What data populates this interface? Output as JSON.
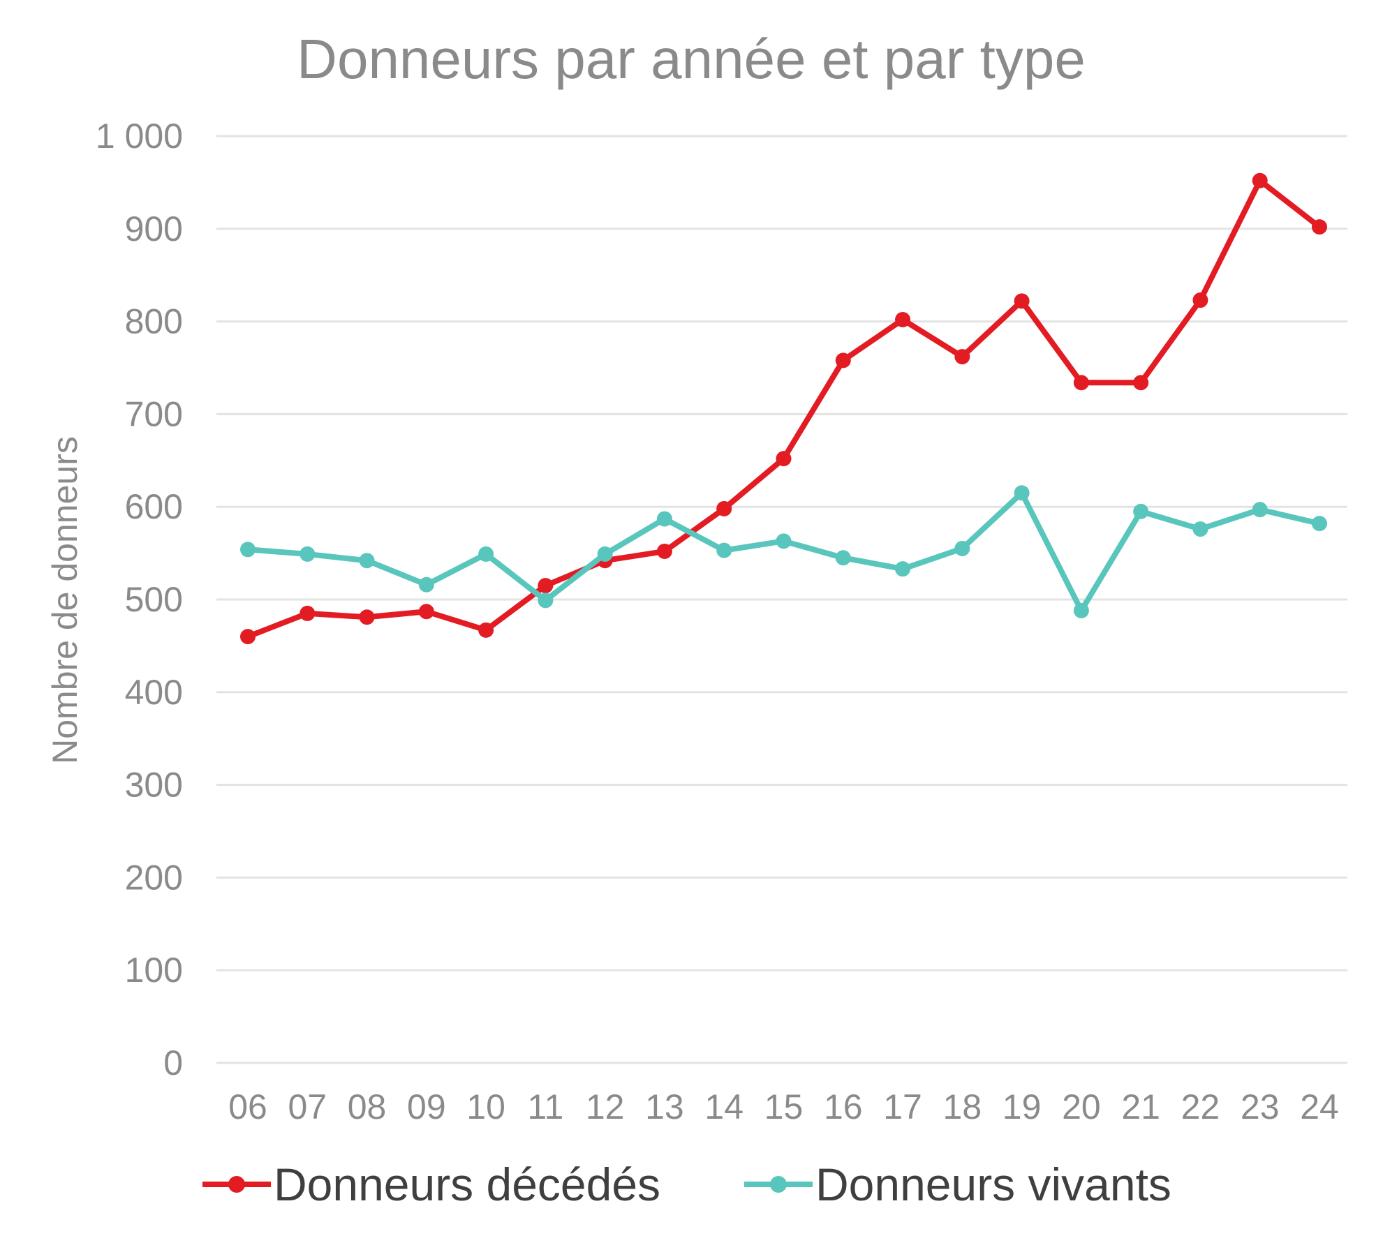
{
  "chart_data": {
    "type": "line",
    "title": "Donneurs par année et par type",
    "xlabel": "",
    "ylabel": "Nombre de donneurs",
    "ylim": [
      0,
      1000
    ],
    "yticks": [
      "0",
      "100",
      "200",
      "300",
      "400",
      "500",
      "600",
      "700",
      "800",
      "900",
      "1 000"
    ],
    "ytick_values": [
      0,
      100,
      200,
      300,
      400,
      500,
      600,
      700,
      800,
      900,
      1000
    ],
    "categories": [
      "06",
      "07",
      "08",
      "09",
      "10",
      "11",
      "12",
      "13",
      "14",
      "15",
      "16",
      "17",
      "18",
      "19",
      "20",
      "21",
      "22",
      "23",
      "24"
    ],
    "grid": true,
    "legend_position": "bottom",
    "series": [
      {
        "name": "Donneurs décédés",
        "color": "#e31b23",
        "values": [
          460,
          485,
          481,
          487,
          467,
          515,
          542,
          552,
          598,
          652,
          758,
          802,
          762,
          822,
          734,
          734,
          823,
          952,
          902
        ]
      },
      {
        "name": "Donneurs vivants",
        "color": "#58c6bc",
        "values": [
          554,
          549,
          542,
          516,
          549,
          499,
          549,
          587,
          553,
          563,
          545,
          533,
          555,
          615,
          488,
          595,
          576,
          597,
          582
        ]
      }
    ]
  }
}
